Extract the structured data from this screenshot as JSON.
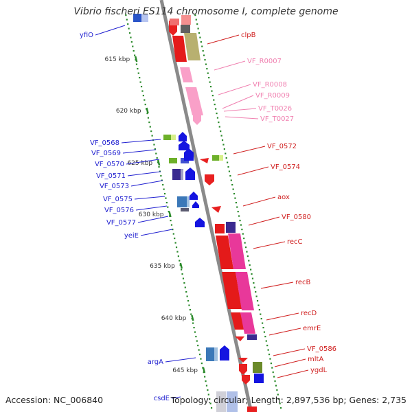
{
  "title": "Vibrio fischeri ES114 chromosome I, complete genome",
  "accession_text": "Accession: NC_006840",
  "summary_text": "Topology: circular; Length: 2,897,536 bp; Genes: 2,735",
  "colors": {
    "backbone": "#8a8a8a",
    "tick": "#2b8a2b",
    "left_label": "#1f1fd0",
    "right_label": "#d01f1f",
    "rna_label": "#f080b0"
  },
  "scale_labels": [
    "615 kbp",
    "620 kbp",
    "625 kbp",
    "630 kbp",
    "635 kbp",
    "640 kbp",
    "645 kbp"
  ],
  "left_genes": [
    "yfiO",
    "VF_0568",
    "VF_0569",
    "VF_0570",
    "VF_0571",
    "VF_0573",
    "VF_0575",
    "VF_0576",
    "VF_0577",
    "yeiE",
    "argA",
    "csdE"
  ],
  "right_genes": [
    "clpB",
    "VF_0572",
    "VF_0574",
    "aox",
    "VF_0580",
    "recC",
    "recB",
    "recD",
    "emrE",
    "VF_0586",
    "mltA",
    "ygdL"
  ],
  "rna_genes": [
    "VF_R0007",
    "VF_R0008",
    "VF_R0009",
    "VF_T0026",
    "VF_T0027"
  ]
}
